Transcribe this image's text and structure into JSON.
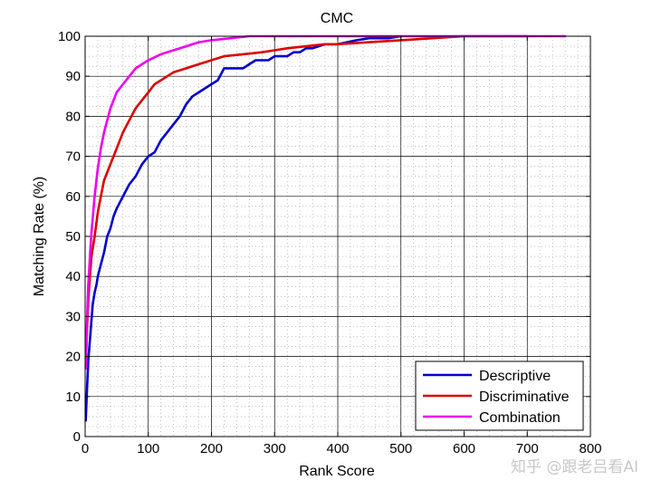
{
  "watermark": "知乎 @跟老吕看AI",
  "chart_data": {
    "type": "line",
    "title": "CMC",
    "xlabel": "Rank Score",
    "ylabel": "Matching Rate (%)",
    "xlim": [
      0,
      800
    ],
    "ylim": [
      0,
      100
    ],
    "xticks": [
      "0",
      "100",
      "200",
      "300",
      "400",
      "500",
      "600",
      "700",
      "800"
    ],
    "yticks": [
      "0",
      "10",
      "20",
      "30",
      "40",
      "50",
      "60",
      "70",
      "80",
      "90",
      "100"
    ],
    "grid": "major and minor (dotted)",
    "legend_position": "bottom-right",
    "series": [
      {
        "name": "Descriptive",
        "color": "#0000cc",
        "x": [
          1,
          3,
          5,
          8,
          10,
          12,
          15,
          18,
          20,
          25,
          30,
          35,
          40,
          45,
          50,
          60,
          70,
          80,
          90,
          100,
          110,
          120,
          130,
          140,
          150,
          160,
          170,
          180,
          190,
          200,
          210,
          220,
          230,
          240,
          250,
          260,
          270,
          280,
          290,
          300,
          310,
          320,
          330,
          340,
          350,
          360,
          380,
          400,
          430,
          450,
          480,
          500
        ],
        "y": [
          4,
          12,
          19,
          25,
          29,
          33,
          36,
          38,
          40,
          43,
          46,
          50,
          52,
          55,
          57,
          60,
          63,
          65,
          68,
          70,
          71,
          74,
          76,
          78,
          80,
          83,
          85,
          86,
          87,
          88,
          89,
          92,
          92,
          92,
          92,
          93,
          94,
          94,
          94,
          95,
          95,
          95,
          96,
          96,
          97,
          97,
          98,
          98,
          99,
          99.5,
          99.5,
          100
        ]
      },
      {
        "name": "Discriminative",
        "color": "#dd0000",
        "x": [
          1,
          3,
          5,
          8,
          10,
          15,
          20,
          25,
          30,
          40,
          50,
          60,
          70,
          80,
          90,
          100,
          110,
          120,
          130,
          140,
          150,
          160,
          180,
          200,
          220,
          250,
          280,
          300,
          320,
          350,
          380,
          400,
          450,
          500,
          550,
          600,
          650,
          700
        ],
        "y": [
          18,
          27,
          34,
          41,
          45,
          50,
          56,
          60,
          64,
          68,
          72,
          76,
          79,
          82,
          84,
          86,
          88,
          89,
          90,
          91,
          91.5,
          92,
          93,
          94,
          95,
          95.5,
          96,
          96.5,
          97,
          97.5,
          98,
          98,
          98.5,
          99,
          99.5,
          100,
          100,
          100
        ]
      },
      {
        "name": "Combination",
        "color": "#ee00ee",
        "x": [
          1,
          3,
          5,
          8,
          10,
          15,
          20,
          25,
          30,
          40,
          50,
          60,
          70,
          80,
          100,
          120,
          140,
          160,
          180,
          200,
          230,
          260,
          300,
          400,
          500,
          600,
          700,
          760
        ],
        "y": [
          17,
          29,
          38,
          46,
          51,
          60,
          67,
          72,
          76,
          82,
          86,
          88,
          90,
          92,
          94,
          95.5,
          96.5,
          97.5,
          98.5,
          99,
          99.5,
          100,
          100,
          100,
          100,
          100,
          100,
          100
        ]
      }
    ]
  }
}
